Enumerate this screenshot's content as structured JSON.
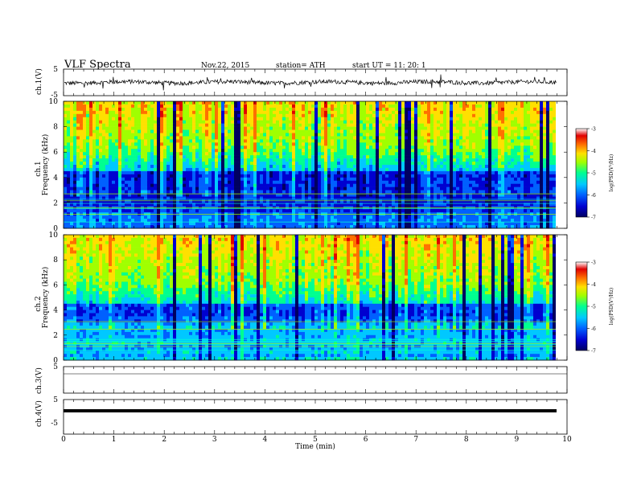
{
  "header": {
    "title": "VLF  Spectra",
    "date": "Nov.22, 2015",
    "station": "station= ATH",
    "start": "start  UT  =    11: 20: 1"
  },
  "colors": {
    "colormap": [
      "#000060",
      "#0000d0",
      "#0060ff",
      "#00c8ff",
      "#00ff90",
      "#a0ff00",
      "#ffe000",
      "#ff7000",
      "#e00000",
      "#ffffff"
    ],
    "trace": "#000000",
    "axis": "#000000"
  },
  "chart_data": [
    {
      "type": "line",
      "panel": "ch1-waveform",
      "ylabel": "ch.1(V)",
      "ylim": [
        -5,
        5
      ],
      "yticks": [
        "5",
        "-5"
      ],
      "description_values": {
        "baseline_v": 0,
        "amplitude_v": 1.0,
        "spike_v": -2.5
      }
    },
    {
      "type": "heatmap",
      "panel": "ch1-spectrogram",
      "ylabel": "ch.1\nFrequency  (kHz)",
      "ylabel_line1": "ch.1",
      "ylabel_line2": "Frequency  (kHz)",
      "ylim": [
        0,
        10
      ],
      "yticks": [
        "0",
        "2",
        "4",
        "6",
        "8",
        "10"
      ],
      "colorbar": {
        "label": "log(PSD(V²/Hz)",
        "range": [
          -7,
          -3
        ],
        "ticks": [
          "-3",
          "-4",
          "-5",
          "-6",
          "-7"
        ]
      }
    },
    {
      "type": "heatmap",
      "panel": "ch2-spectrogram",
      "ylabel_line1": "ch.2",
      "ylabel_line2": "Frequency  (kHz)",
      "ylim": [
        0,
        10
      ],
      "yticks": [
        "0",
        "2",
        "4",
        "6",
        "8",
        "10"
      ],
      "colorbar": {
        "label": "log(PSD(V²/Hz)",
        "range": [
          -7,
          -3
        ],
        "ticks": [
          "-3",
          "-4",
          "-5",
          "-6",
          "-7"
        ]
      }
    },
    {
      "type": "line",
      "panel": "ch3-waveform",
      "ylabel": "ch.3(V)",
      "ylim": [
        -5,
        5
      ],
      "yticks": [
        "5"
      ],
      "description_values": {
        "baseline_v": 0
      }
    },
    {
      "type": "line",
      "panel": "ch4-waveform",
      "ylabel": "ch.4(V)",
      "ylim": [
        -5,
        5
      ],
      "yticks": [
        "5",
        "-5"
      ],
      "description_values": {
        "baseline_v": 0
      }
    }
  ],
  "xaxis": {
    "label": "Time  (min)",
    "range": [
      0,
      10
    ],
    "ticks": [
      "0",
      "1",
      "2",
      "3",
      "4",
      "5",
      "6",
      "7",
      "8",
      "9",
      "10"
    ]
  }
}
